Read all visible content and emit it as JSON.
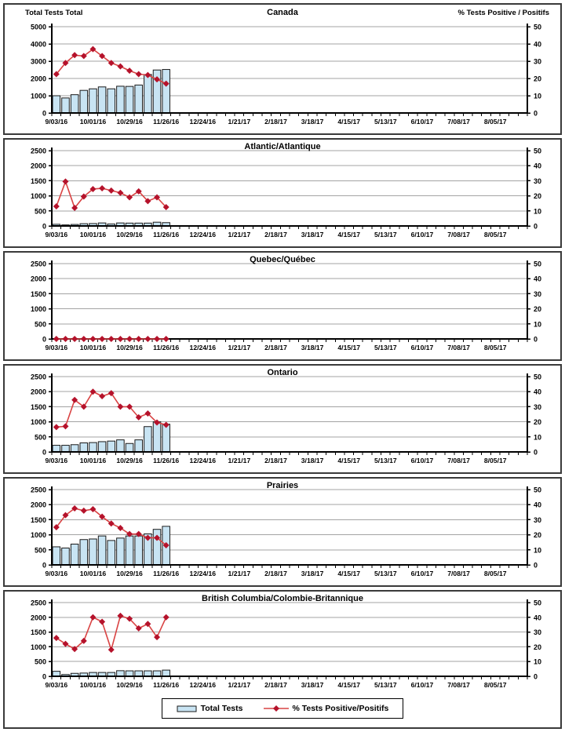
{
  "axis_titles": {
    "left": "Total Tests Total",
    "right": "% Tests Positive / Positifs"
  },
  "legend": {
    "bars": "Total Tests",
    "line": "% Tests Positive/Positifs"
  },
  "colors": {
    "bar_fill": "#c8e4f3",
    "bar_stroke": "#1a1a1a",
    "line": "#d94343",
    "marker": "#b5122b",
    "grid": "#a3a3a3",
    "axis": "#000000",
    "text": "#000000"
  },
  "x_axis": {
    "tick_labels": [
      "9/03/16",
      "10/01/16",
      "10/29/16",
      "11/26/16",
      "12/24/16",
      "1/21/17",
      "2/18/17",
      "3/18/17",
      "4/15/17",
      "5/13/17",
      "6/10/17",
      "7/08/17",
      "8/05/17"
    ],
    "label_every": 4,
    "weeks_total": 52,
    "weeks_with_data": 13
  },
  "chart_data": [
    {
      "type": "bar+line",
      "title": "Canada",
      "left_axis": {
        "label": "Total Tests Total",
        "min": 0,
        "max": 5000,
        "step": 1000
      },
      "right_axis": {
        "label": "% Tests Positive / Positifs",
        "min": 0,
        "max": 50,
        "step": 10
      },
      "series": [
        {
          "name": "Total Tests",
          "type": "bar",
          "axis": "left",
          "values": [
            1000,
            870,
            1060,
            1310,
            1400,
            1510,
            1400,
            1550,
            1540,
            1620,
            2230,
            2490,
            2520
          ]
        },
        {
          "name": "% Tests Positive/Positifs",
          "type": "line",
          "axis": "right",
          "values": [
            22.5,
            29,
            33.5,
            33,
            37,
            33,
            29,
            27,
            24.5,
            22.5,
            22,
            19.5,
            17
          ]
        }
      ]
    },
    {
      "type": "bar+line",
      "title": "Atlantic/Atlantique",
      "left_axis": {
        "min": 0,
        "max": 2500,
        "step": 500
      },
      "right_axis": {
        "min": 0,
        "max": 50,
        "step": 10
      },
      "series": [
        {
          "name": "Total Tests",
          "type": "bar",
          "axis": "left",
          "values": [
            55,
            35,
            50,
            75,
            80,
            100,
            65,
            100,
            95,
            95,
            95,
            125,
            110
          ]
        },
        {
          "name": "% Tests Positive/Positifs",
          "type": "line",
          "axis": "right",
          "values": [
            13,
            29.5,
            12,
            19.5,
            24.5,
            25,
            23.5,
            22,
            19,
            23,
            16.5,
            19,
            12.5
          ]
        }
      ]
    },
    {
      "type": "bar+line",
      "title": "Quebec/Québec",
      "left_axis": {
        "min": 0,
        "max": 2500,
        "step": 500
      },
      "right_axis": {
        "min": 0,
        "max": 50,
        "step": 10
      },
      "series": [
        {
          "name": "Total Tests",
          "type": "bar",
          "axis": "left",
          "values": [
            0,
            0,
            0,
            0,
            0,
            0,
            0,
            0,
            0,
            0,
            0,
            0,
            0
          ]
        },
        {
          "name": "% Tests Positive/Positifs",
          "type": "line",
          "axis": "right",
          "values": [
            0,
            0,
            0,
            0,
            0,
            0,
            0,
            0,
            0,
            0,
            0,
            0,
            0
          ]
        }
      ]
    },
    {
      "type": "bar+line",
      "title": "Ontario",
      "left_axis": {
        "min": 0,
        "max": 2500,
        "step": 500
      },
      "right_axis": {
        "min": 0,
        "max": 50,
        "step": 10
      },
      "series": [
        {
          "name": "Total Tests",
          "type": "bar",
          "axis": "left",
          "values": [
            220,
            220,
            240,
            300,
            310,
            340,
            360,
            400,
            280,
            400,
            840,
            1000,
            920
          ]
        },
        {
          "name": "% Tests Positive/Positifs",
          "type": "line",
          "axis": "right",
          "values": [
            16.5,
            17,
            34.5,
            30,
            40,
            37,
            39,
            30,
            30,
            23,
            25.5,
            19.5,
            18
          ]
        }
      ]
    },
    {
      "type": "bar+line",
      "title": "Prairies",
      "left_axis": {
        "min": 0,
        "max": 2500,
        "step": 500
      },
      "right_axis": {
        "min": 0,
        "max": 50,
        "step": 10
      },
      "series": [
        {
          "name": "Total Tests",
          "type": "bar",
          "axis": "left",
          "values": [
            600,
            560,
            690,
            840,
            860,
            960,
            810,
            890,
            960,
            960,
            1030,
            1180,
            1280
          ]
        },
        {
          "name": "% Tests Positive/Positifs",
          "type": "line",
          "axis": "right",
          "values": [
            25,
            33,
            37.5,
            36,
            37,
            32,
            27.5,
            24.5,
            20.5,
            20.5,
            18,
            18,
            13
          ]
        }
      ]
    },
    {
      "type": "bar+line",
      "title": "British Columbia/Colombie-Britannique",
      "left_axis": {
        "min": 0,
        "max": 2500,
        "step": 500
      },
      "right_axis": {
        "min": 0,
        "max": 50,
        "step": 10
      },
      "series": [
        {
          "name": "Total Tests",
          "type": "bar",
          "axis": "left",
          "values": [
            170,
            60,
            100,
            110,
            130,
            130,
            130,
            190,
            185,
            185,
            185,
            185,
            210
          ]
        },
        {
          "name": "% Tests Positive/Positifs",
          "type": "line",
          "axis": "right",
          "values": [
            26,
            22,
            18.5,
            24,
            40,
            37,
            18,
            41,
            39,
            32.5,
            35.5,
            26.5,
            40
          ]
        }
      ]
    }
  ]
}
